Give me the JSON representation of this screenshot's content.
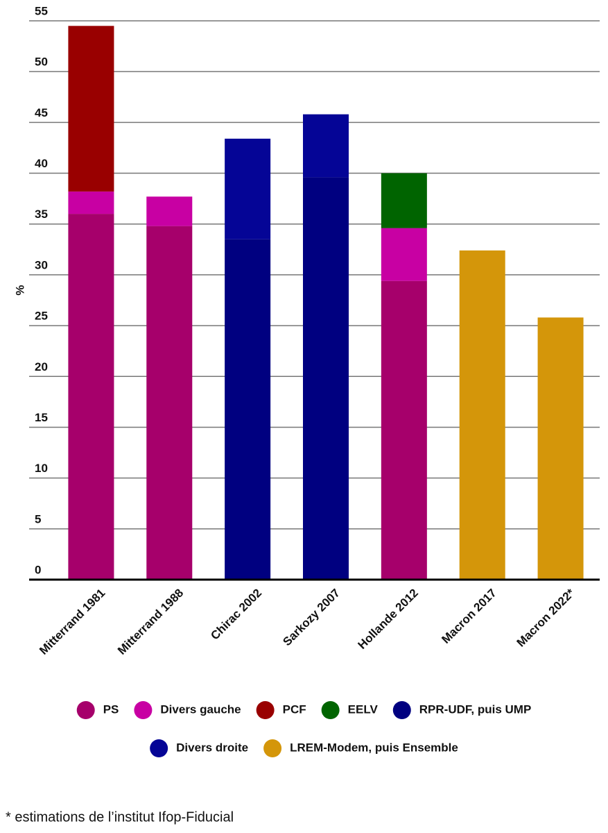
{
  "chart_data": {
    "type": "stacked_bar",
    "y_label": "%",
    "categories": [
      "Mitterrand 1981",
      "Mitterrand 1988",
      "Chirac 2002",
      "Sarkozy 2007",
      "Hollande 2012",
      "Macron 2017",
      "Macron 2022*"
    ],
    "series": [
      {
        "name": "PS",
        "color": "#a6006b",
        "values": [
          36,
          34.8,
          null,
          null,
          29.4,
          null,
          null
        ]
      },
      {
        "name": "Divers gauche",
        "color": "#c800a3",
        "values": [
          2.2,
          2.9,
          null,
          null,
          5.2,
          null,
          null
        ]
      },
      {
        "name": "PCF",
        "color": "#990000",
        "values": [
          16.3,
          null,
          null,
          null,
          null,
          null,
          null
        ]
      },
      {
        "name": "EELV",
        "color": "#006400",
        "values": [
          null,
          null,
          null,
          null,
          5.4,
          null,
          null
        ]
      },
      {
        "name": "RPR-UDF, puis UMP",
        "color": "#000080",
        "values": [
          null,
          null,
          33.5,
          39.6,
          null,
          null,
          null
        ]
      },
      {
        "name": "Divers droite",
        "color": "#050596",
        "values": [
          null,
          null,
          9.9,
          6.2,
          null,
          null,
          null
        ]
      },
      {
        "name": "LREM-Modem, puis Ensemble",
        "color": "#d4960a",
        "values": [
          null,
          null,
          null,
          null,
          null,
          32.4,
          25.8
        ]
      }
    ],
    "ylim": [
      0,
      55
    ],
    "yticks": [
      0,
      5,
      10,
      15,
      20,
      25,
      30,
      35,
      40,
      45,
      50,
      55
    ],
    "grid": true,
    "footnote": "* estimations de l’institut Ifop-Fiducial"
  }
}
